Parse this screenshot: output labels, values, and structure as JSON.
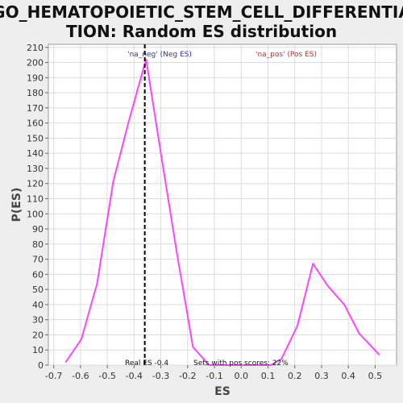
{
  "colors": {
    "background": "#eeeeee",
    "plot_background": "#ffffff",
    "grid": "#dcdcdc",
    "series": "#ff44ff",
    "marker_line": "#000000",
    "neg_label": "#3333cc",
    "pos_label": "#dd2222"
  },
  "chart_data": {
    "type": "line",
    "title": "GO_HEMATOPOIETIC_STEM_CELL_DIFFERENTIATION: Random ES distribution",
    "title_lines": [
      "GO_HEMATOPOIETIC_STEM_CELL_DIFFERENTIA",
      "TION: Random ES distribution"
    ],
    "xlabel": "ES",
    "ylabel": "P(ES)",
    "xlim": [
      -0.72,
      0.58
    ],
    "ylim": [
      0,
      212
    ],
    "xticks": [
      -0.7,
      -0.6,
      -0.5,
      -0.4,
      -0.3,
      -0.2,
      -0.1,
      0.0,
      0.1,
      0.2,
      0.3,
      0.4,
      0.5
    ],
    "xtick_labels": [
      "-0.7",
      "-0.6",
      "-0.5",
      "-0.4",
      "-0.3",
      "-0.2",
      "-0.1",
      "0.0",
      "0.1",
      "0.2",
      "0.3",
      "0.4",
      "0.5"
    ],
    "yticks": [
      0,
      10,
      20,
      30,
      40,
      50,
      60,
      70,
      80,
      90,
      100,
      110,
      120,
      130,
      140,
      150,
      160,
      170,
      180,
      190,
      200,
      210
    ],
    "grid": true,
    "series": [
      {
        "x": [
          -0.655,
          -0.597,
          -0.538,
          -0.478,
          -0.42,
          -0.365,
          -0.355,
          -0.3,
          -0.24,
          -0.18,
          -0.12,
          -0.06,
          0.0,
          0.06,
          0.11,
          0.15,
          0.21,
          0.268,
          0.325,
          0.385,
          0.44,
          0.515
        ],
        "y": [
          2,
          17,
          54,
          121,
          161,
          196,
          202,
          140,
          74,
          12,
          0,
          0,
          0,
          0,
          0,
          4,
          26,
          67,
          52,
          40,
          21,
          7
        ]
      }
    ],
    "real_es": -0.36,
    "annotations": {
      "neg_label": "'na_neg' (Neg ES)",
      "pos_label": "'na_pos' (Pos ES)",
      "real_es": "Real ES -0.4",
      "sets_pos": "Sets with pos scores: 22%"
    }
  }
}
